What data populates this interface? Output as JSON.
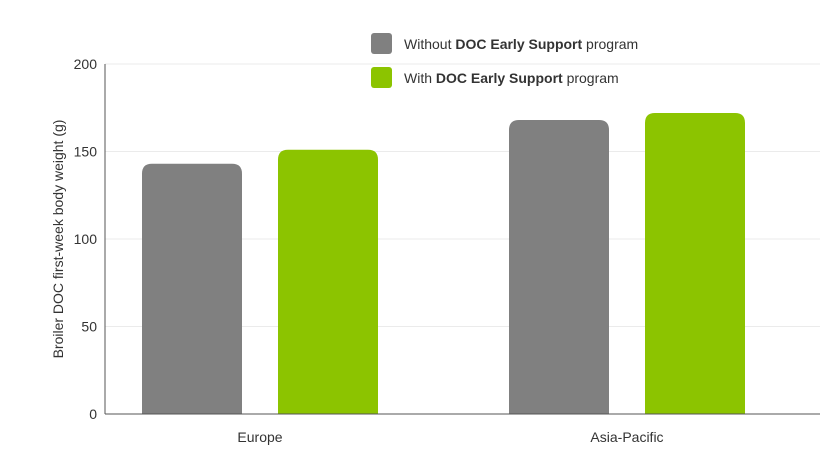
{
  "chart_data": {
    "type": "bar",
    "categories": [
      "Europe",
      "Asia-Pacific"
    ],
    "series": [
      {
        "name": "Without DOC Early Support program",
        "legend_parts": [
          "Without ",
          "DOC Early Support",
          " program"
        ],
        "color": "#808080",
        "values": [
          143,
          168
        ]
      },
      {
        "name": "With DOC Early Support program",
        "legend_parts": [
          "With ",
          "DOC Early Support",
          " program"
        ],
        "color": "#8cc400",
        "values": [
          151,
          172
        ]
      }
    ],
    "ylabel": "Broiler DOC first-week body weight (g)",
    "xlabel": "",
    "ylim": [
      0,
      200
    ],
    "yticks": [
      "0",
      "50",
      "100",
      "150",
      "200"
    ],
    "grid": true,
    "legend_position": "top-right"
  }
}
